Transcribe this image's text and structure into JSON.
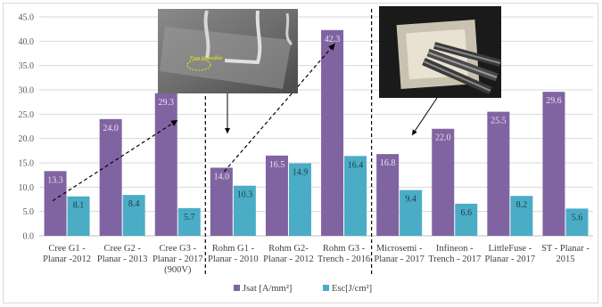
{
  "chart_data": {
    "type": "bar",
    "categories": [
      [
        "Cree G1  -",
        "Planar -2012"
      ],
      [
        "Cree G2 -",
        "Planar - 2013"
      ],
      [
        "Cree G3 -",
        "Planar - 2017",
        "(900V)"
      ],
      [
        "Rohm G1 -",
        "Planar - 2010"
      ],
      [
        "Rohm G2-",
        "Planar - 2012"
      ],
      [
        "Rohm G3 -",
        "Trench - 2016"
      ],
      [
        "Microsemi -",
        "Planar - 2017"
      ],
      [
        "Infineon -",
        "Trench - 2017"
      ],
      [
        "LittleFuse -",
        "Planar - 2017"
      ],
      [
        "ST - Planar -",
        "2015"
      ]
    ],
    "series": [
      {
        "name": "Jsat [A/mm²]",
        "color": "#8064a2",
        "values": [
          13.3,
          24.0,
          29.3,
          14.0,
          16.5,
          42.3,
          16.8,
          22.0,
          25.5,
          29.6
        ],
        "labels": [
          "13.3",
          "24.0",
          "29.3",
          "14.0",
          "16.5",
          "42.3",
          "16.8",
          "22.0",
          "25.5",
          "29.6"
        ]
      },
      {
        "name": "Esc[J/cm²]",
        "color": "#4bacc6",
        "values": [
          8.1,
          8.4,
          5.7,
          10.3,
          14.9,
          16.4,
          9.4,
          6.6,
          8.2,
          5.6
        ],
        "labels": [
          "8.1",
          "8.4",
          "5.7",
          "10.3",
          "14.9",
          "16.4",
          "9.4",
          "6.6",
          "8.2",
          "5.6"
        ]
      }
    ],
    "yticks": [
      "0.0",
      "5.0",
      "10.0",
      "15.0",
      "20.0",
      "25.0",
      "30.0",
      "35.0",
      "40.0",
      "45.0"
    ],
    "ylim": [
      0,
      45
    ],
    "separators_after_category": [
      2,
      5
    ],
    "photo_annotations": [
      {
        "name": "die-photo-bond-wires",
        "caption": "Fuse imposible"
      },
      {
        "name": "module-photo-probes"
      }
    ]
  }
}
